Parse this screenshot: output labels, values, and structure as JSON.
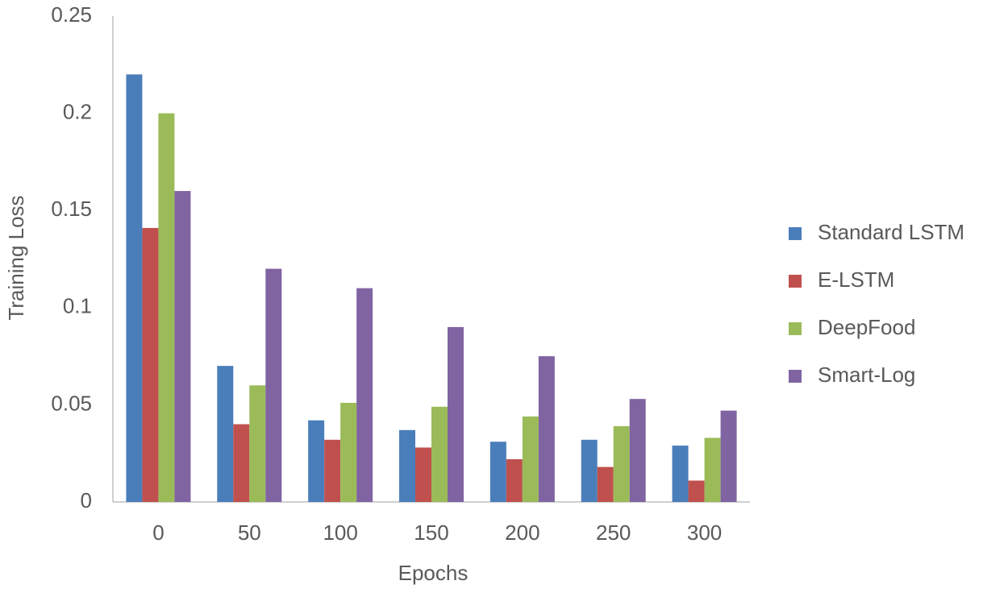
{
  "chart_data": {
    "type": "bar",
    "x_label": "Epochs",
    "y_label": "Training Loss",
    "categories": [
      "0",
      "50",
      "100",
      "150",
      "200",
      "250",
      "300"
    ],
    "series": [
      {
        "name": "Standard LSTM",
        "color": "#4a7ebb",
        "values": [
          0.22,
          0.07,
          0.042,
          0.037,
          0.031,
          0.032,
          0.029
        ]
      },
      {
        "name": "E-LSTM",
        "color": "#c0504d",
        "values": [
          0.141,
          0.04,
          0.032,
          0.028,
          0.022,
          0.018,
          0.011
        ]
      },
      {
        "name": "DeepFood",
        "color": "#9bbb59",
        "values": [
          0.2,
          0.06,
          0.051,
          0.049,
          0.044,
          0.039,
          0.033
        ]
      },
      {
        "name": "Smart-Log",
        "color": "#8064a2",
        "values": [
          0.16,
          0.12,
          0.11,
          0.09,
          0.075,
          0.053,
          0.047
        ]
      }
    ],
    "ylim": [
      0,
      0.25
    ],
    "yticks": [
      0,
      0.05,
      0.1,
      0.15,
      0.2,
      0.25
    ],
    "grid": false,
    "legend": "right"
  }
}
